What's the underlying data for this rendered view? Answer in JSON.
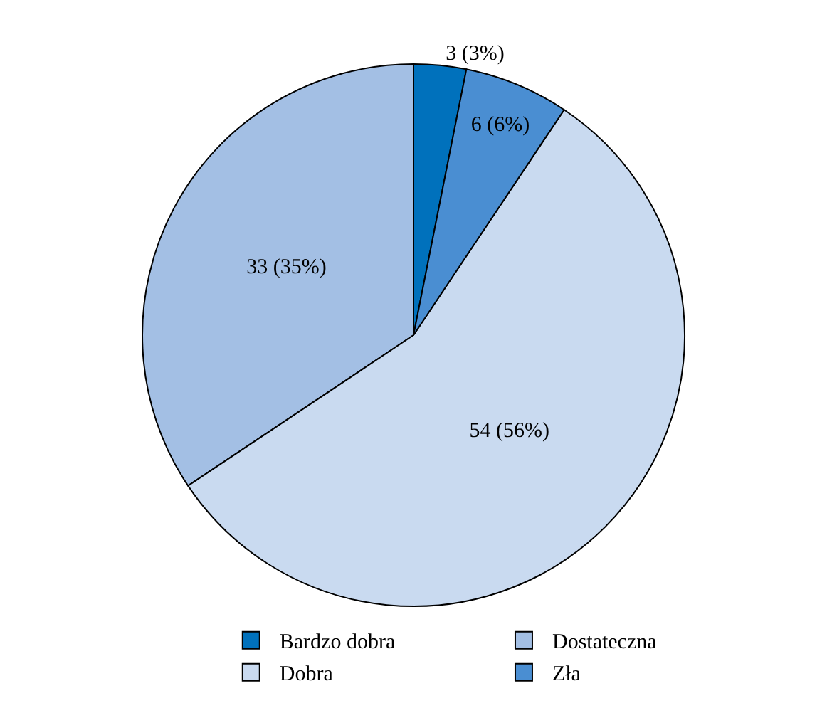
{
  "chart_data": {
    "type": "pie",
    "categories": [
      "Bardzo dobra",
      "Dostateczna",
      "Dobra",
      "Zła"
    ],
    "values": [
      3,
      33,
      54,
      6
    ],
    "value_labels": [
      "3 (3%)",
      "33 (35%)",
      "54 (56%)",
      "6 (6%)"
    ],
    "colors": [
      "#0071bc",
      "#a3bfe4",
      "#c9daf0",
      "#4a8ed2"
    ],
    "legend": "bottom"
  }
}
